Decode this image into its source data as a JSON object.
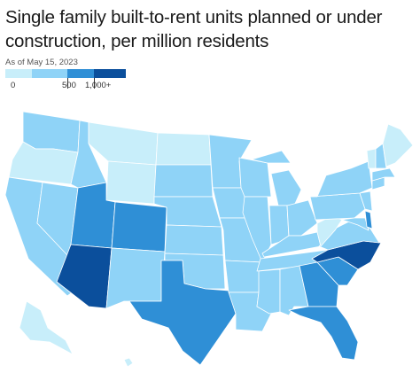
{
  "title": "Single family built-to-rent units planned or under construction, per million residents",
  "subtitle": "As of May 15, 2023",
  "legend": {
    "ticks": [
      "0",
      "500",
      "1,000+"
    ],
    "colors": [
      "#c8eefa",
      "#8fd3f7",
      "#2f8fd6",
      "#0b4f9c"
    ]
  },
  "chart_data": {
    "type": "choropleth",
    "legend_ticks": [
      "0",
      "500",
      "1,000+"
    ],
    "bins": [
      "0",
      "between 0 and 500",
      "500 to 1,000",
      "1,000+"
    ],
    "states": {
      "AZ": 4,
      "NC": 4,
      "UT": 3,
      "CO": 3,
      "TX": 3,
      "GA": 3,
      "FL": 3,
      "SC": 3,
      "DE": 3,
      "WA": 2,
      "ID": 2,
      "NV": 2,
      "CA": 2,
      "NM": 2,
      "NE": 2,
      "KS": 2,
      "SD": 2,
      "MN": 2,
      "IA": 2,
      "MO": 2,
      "OK": 2,
      "AR": 2,
      "LA": 2,
      "WI": 2,
      "IL": 2,
      "MI": 2,
      "IN": 2,
      "OH": 2,
      "KY": 2,
      "TN": 2,
      "MS": 2,
      "AL": 2,
      "VA": 2,
      "PA": 2,
      "NY": 2,
      "MD": 2,
      "NJ": 2,
      "CT": 2,
      "MA": 2,
      "NH": 2,
      "OR": 1,
      "MT": 1,
      "WY": 1,
      "ND": 1,
      "WV": 1,
      "ME": 1,
      "VT": 1,
      "AK": 1,
      "HI": 1
    }
  }
}
